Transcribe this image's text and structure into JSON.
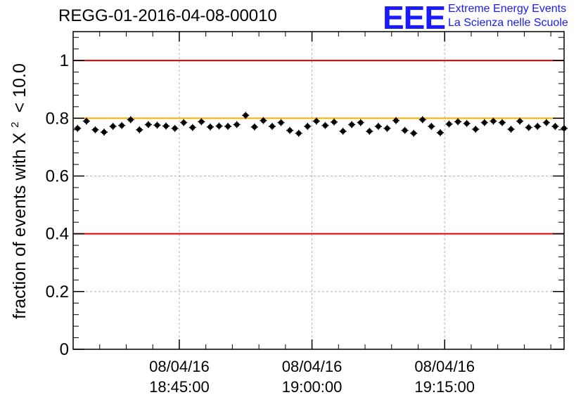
{
  "header": {
    "run_title": "REGG-01-2016-04-08-00010",
    "logo_text": "EEE",
    "logo_line1": "Extreme Energy Events",
    "logo_line2": "La Scienza nelle Scuole"
  },
  "colors": {
    "reference_lines": "#e00000",
    "threshold_line": "#ffb000",
    "logo": "#1a1aff",
    "points": "#000000",
    "grid": "#b0b0b0"
  },
  "chart_data": {
    "type": "scatter",
    "title": "REGG-01-2016-04-08-00010",
    "ylabel_prefix": "fraction of events with",
    "ylabel_symbol": "X",
    "ylabel_superscript": "2",
    "ylabel_suffix": "< 10.0",
    "xlabel": "",
    "ylim": [
      0,
      1.1
    ],
    "yticks": [
      "0",
      "0.2",
      "0.4",
      "0.6",
      "0.8",
      "1"
    ],
    "yticks_values": [
      0,
      0.2,
      0.4,
      0.6,
      0.8,
      1.0
    ],
    "xlim_minutes": [
      33,
      88.5
    ],
    "xticks": [
      {
        "minute": 45,
        "date": "08/04/16",
        "time": "18:45:00"
      },
      {
        "minute": 60,
        "date": "08/04/16",
        "time": "19:00:00"
      },
      {
        "minute": 75,
        "date": "08/04/16",
        "time": "19:15:00"
      }
    ],
    "x_axis_base": "08/04/16 18:00:00",
    "grid": true,
    "reference_lines": [
      {
        "y": 1.0,
        "color": "#e00000"
      },
      {
        "y": 0.4,
        "color": "#e00000"
      },
      {
        "y": 0.8,
        "color": "#ffb000"
      }
    ],
    "series": [
      {
        "x_minutes": [
          33.5,
          34.5,
          35.5,
          36.5,
          37.5,
          38.5,
          39.5,
          40.5,
          41.5,
          42.5,
          43.5,
          44.5,
          45.5,
          46.5,
          47.5,
          48.5,
          49.5,
          50.5,
          51.5,
          52.5,
          53.5,
          54.5,
          55.5,
          56.5,
          57.5,
          58.5,
          59.5,
          60.5,
          61.5,
          62.5,
          63.5,
          64.5,
          65.5,
          66.5,
          67.5,
          68.5,
          69.5,
          70.5,
          71.5,
          72.5,
          73.5,
          74.5,
          75.5,
          76.5,
          77.5,
          78.5,
          79.5,
          80.5,
          81.5,
          82.5,
          83.5,
          84.5,
          85.5,
          86.5,
          87.5,
          88.5
        ],
        "y": [
          0.765,
          0.79,
          0.76,
          0.752,
          0.772,
          0.775,
          0.795,
          0.76,
          0.778,
          0.776,
          0.773,
          0.765,
          0.785,
          0.768,
          0.788,
          0.77,
          0.773,
          0.772,
          0.778,
          0.81,
          0.77,
          0.792,
          0.772,
          0.785,
          0.758,
          0.748,
          0.772,
          0.79,
          0.775,
          0.787,
          0.755,
          0.778,
          0.785,
          0.755,
          0.772,
          0.765,
          0.792,
          0.758,
          0.748,
          0.795,
          0.772,
          0.75,
          0.78,
          0.788,
          0.782,
          0.762,
          0.785,
          0.79,
          0.785,
          0.762,
          0.79,
          0.768,
          0.772,
          0.785,
          0.772,
          0.765
        ],
        "yerr": 0.012,
        "xerr_minutes": 0.5
      }
    ]
  }
}
